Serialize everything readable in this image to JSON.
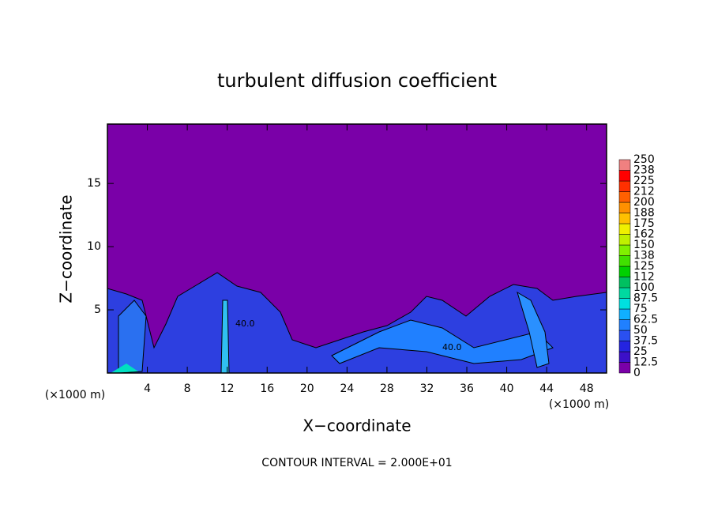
{
  "chart_data": {
    "type": "contour",
    "title": "turbulent diffusion coefficient",
    "xlabel": "X−coordinate",
    "ylabel": "Z−coordinate",
    "x_unit": "(×1000 m)",
    "footer": "CONTOUR INTERVAL = 2.000E+01",
    "annotations": [
      "40.0",
      "40.0"
    ],
    "xlim": [
      0,
      50
    ],
    "xticks": [
      4,
      8,
      12,
      16,
      20,
      24,
      28,
      32,
      36,
      40,
      44,
      48
    ],
    "ylim": [
      0,
      19.7
    ],
    "yticks": [
      5,
      10,
      15
    ],
    "levels": [
      0,
      12.5,
      25,
      37.5,
      50,
      62.5,
      75,
      87.5,
      100,
      112,
      125,
      138,
      150,
      162,
      175,
      188,
      200,
      212,
      225,
      238,
      250
    ],
    "colors": [
      "#7a00a8",
      "#3c10c8",
      "#2424e0",
      "#2a50f0",
      "#2080ff",
      "#10b0ff",
      "#00e0e0",
      "#00d8a0",
      "#00c060",
      "#00d000",
      "#40e000",
      "#80f000",
      "#c0f000",
      "#f0f000",
      "#ffc000",
      "#ff9000",
      "#ff6000",
      "#ff3000",
      "#ff0000",
      "#f08080"
    ]
  }
}
